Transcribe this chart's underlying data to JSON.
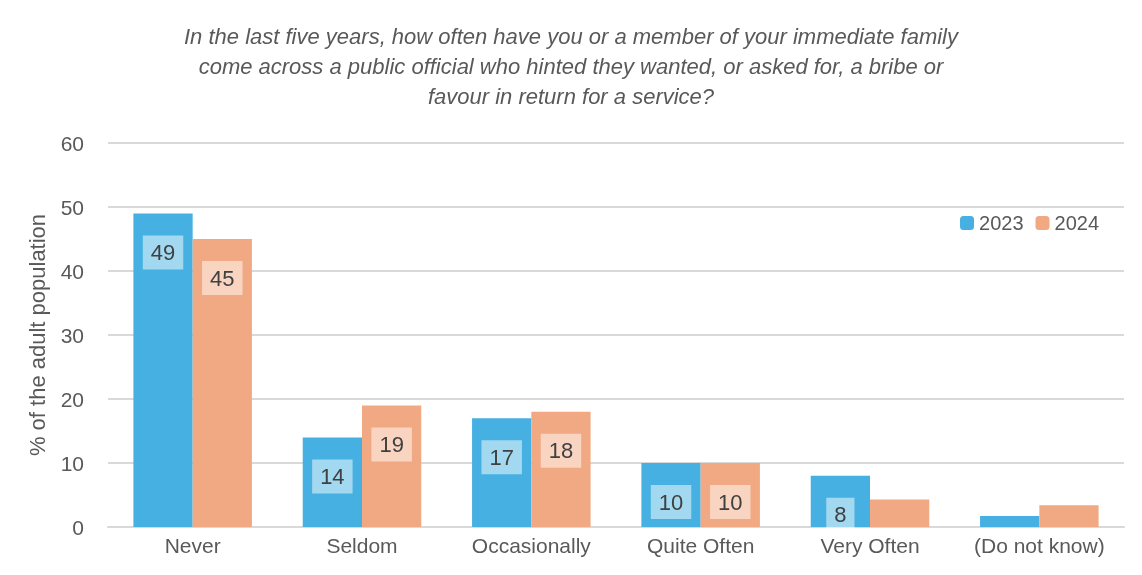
{
  "chart_data": {
    "type": "bar",
    "title": "In the last five years, how often have you or a member of your immediate family\ncome across a public official who hinted they wanted, or asked for, a bribe or\nfavour in return for a service?",
    "ylabel": "% of the adult population",
    "categories": [
      "Never",
      "Seldom",
      "Occasionally",
      "Quite Often",
      "Very Often",
      "(Do not know)"
    ],
    "series": [
      {
        "name": "2023",
        "color": "#45b0e1",
        "values": [
          49,
          14,
          17,
          10,
          8,
          1.7
        ],
        "value_labels": [
          "49",
          "14",
          "17",
          "10",
          "8",
          null
        ]
      },
      {
        "name": "2024",
        "color": "#f1a983",
        "values": [
          45,
          19,
          18,
          10,
          4.3,
          3.4
        ],
        "value_labels": [
          "45",
          "19",
          "18",
          "10",
          null,
          null
        ]
      }
    ],
    "ylim": [
      0,
      60
    ],
    "yticks": [
      0,
      10,
      20,
      30,
      40,
      50,
      60
    ],
    "grid": "y",
    "legend": "top right"
  }
}
